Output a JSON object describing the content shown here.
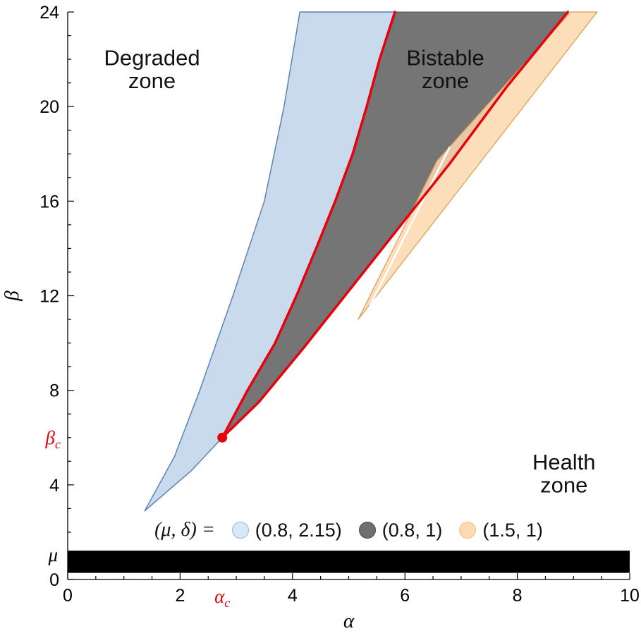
{
  "chart_data": {
    "type": "area",
    "title": "",
    "xlabel": "α",
    "ylabel": "β",
    "xlim": [
      0,
      10
    ],
    "ylim": [
      0,
      24
    ],
    "x_major_ticks": [
      0,
      2,
      4,
      6,
      8,
      10
    ],
    "x_minor_step": 0.5,
    "y_major_ticks": [
      0,
      4,
      8,
      12,
      16,
      20,
      24
    ],
    "y_minor_step": 1,
    "axis_color": "#000000",
    "grid": false,
    "regions": [
      {
        "name": "region-mu0.8-delta2.15",
        "legend_label": "(0.8, 2.15)",
        "fill": "#a9c4e2",
        "fill_opacity": 0.62,
        "stroke": "#5b82b4",
        "stroke_width": 1.5,
        "points": [
          [
            1.37,
            2.9
          ],
          [
            1.9,
            5.2
          ],
          [
            2.35,
            8
          ],
          [
            2.94,
            12
          ],
          [
            3.5,
            16
          ],
          [
            3.85,
            20
          ],
          [
            4.13,
            24
          ],
          [
            5.86,
            24
          ],
          [
            5.55,
            22
          ],
          [
            5.32,
            20
          ],
          [
            5.07,
            18
          ],
          [
            4.76,
            16
          ],
          [
            4.42,
            14
          ],
          [
            4.07,
            12
          ],
          [
            3.69,
            10
          ],
          [
            3.2,
            8
          ],
          [
            2.75,
            6
          ],
          [
            2.2,
            4.6
          ]
        ]
      },
      {
        "name": "region-mu0.8-delta1",
        "legend_label": "(0.8, 1)",
        "fill": "#696969",
        "fill_opacity": 0.92,
        "stroke": "#555555",
        "stroke_width": 1,
        "points": [
          [
            2.75,
            6
          ],
          [
            3.2,
            8
          ],
          [
            3.69,
            10
          ],
          [
            4.07,
            12
          ],
          [
            4.42,
            14
          ],
          [
            4.76,
            16
          ],
          [
            5.07,
            18
          ],
          [
            5.32,
            20
          ],
          [
            5.55,
            22
          ],
          [
            5.82,
            24
          ],
          [
            8.9,
            24
          ],
          [
            7.8,
            20.8
          ],
          [
            6.8,
            17.6
          ],
          [
            5.9,
            14.9
          ],
          [
            5.0,
            12.2
          ],
          [
            4.2,
            9.8
          ],
          [
            3.4,
            7.5
          ]
        ]
      },
      {
        "name": "region-mu1.5-delta1",
        "legend_label": "(1.5, 1)",
        "fill": "#fbd9ae",
        "fill_opacity": 0.85,
        "stroke": "#e09a50",
        "stroke_width": 1.2,
        "points": [
          [
            5.17,
            11.0
          ],
          [
            6.57,
            17.7
          ],
          [
            8.95,
            24
          ],
          [
            9.42,
            24
          ]
        ],
        "notch": [
          [
            5.3,
            11.2
          ],
          [
            6.8,
            18.3
          ]
        ]
      }
    ],
    "curves": [
      {
        "name": "saddle-node-curve-left",
        "color": "#e8000d",
        "width": 3.5,
        "points": [
          [
            2.75,
            6
          ],
          [
            3.2,
            8
          ],
          [
            3.69,
            10
          ],
          [
            4.07,
            12
          ],
          [
            4.42,
            14
          ],
          [
            4.76,
            16
          ],
          [
            5.07,
            18
          ],
          [
            5.32,
            20
          ],
          [
            5.55,
            22
          ],
          [
            5.82,
            24
          ]
        ]
      },
      {
        "name": "saddle-node-curve-right",
        "color": "#e8000d",
        "width": 3.5,
        "points": [
          [
            2.75,
            6
          ],
          [
            3.4,
            7.5
          ],
          [
            4.2,
            9.8
          ],
          [
            5.0,
            12.2
          ],
          [
            5.9,
            14.9
          ],
          [
            6.8,
            17.6
          ],
          [
            7.8,
            20.8
          ],
          [
            8.9,
            24
          ]
        ]
      }
    ],
    "critical_point": {
      "alpha": 2.75,
      "beta": 6.0,
      "color": "#e8000d",
      "radius": 7
    },
    "special_ticks": {
      "x": {
        "base": "α",
        "sub": "c",
        "value": 2.75,
        "color": "#e8000d"
      },
      "y": {
        "base": "β",
        "sub": "c",
        "value": 6.0,
        "color": "#e8000d"
      },
      "mu": {
        "label": "μ",
        "value": 1.05,
        "color": "#000000"
      }
    },
    "mu_band": {
      "y_from": 0.28,
      "y_to": 1.22,
      "color": "#000000"
    },
    "annotations": [
      {
        "name": "degraded-zone-label",
        "lines": [
          "Degraded",
          "zone"
        ],
        "alpha": 1.5,
        "beta": 21.6,
        "size": 31
      },
      {
        "name": "bistable-zone-label",
        "lines": [
          "Bistable",
          "zone"
        ],
        "alpha": 6.72,
        "beta": 21.6,
        "size": 31
      },
      {
        "name": "health-zone-label",
        "lines": [
          "Health",
          "zone"
        ],
        "alpha": 8.83,
        "beta": 4.5,
        "size": 31
      }
    ],
    "legend": {
      "prefix": "(μ, δ)  =",
      "items": [
        {
          "label": "(0.8, 2.15)",
          "fill": "#d9e8f8",
          "border": "#8fb8d8"
        },
        {
          "label": "(0.8, 1)",
          "fill": "#6f6f6f",
          "border": "#4c4c4c"
        },
        {
          "label": "(1.5, 1)",
          "fill": "#fcdab2",
          "border": "#ecbe8e"
        }
      ]
    }
  }
}
